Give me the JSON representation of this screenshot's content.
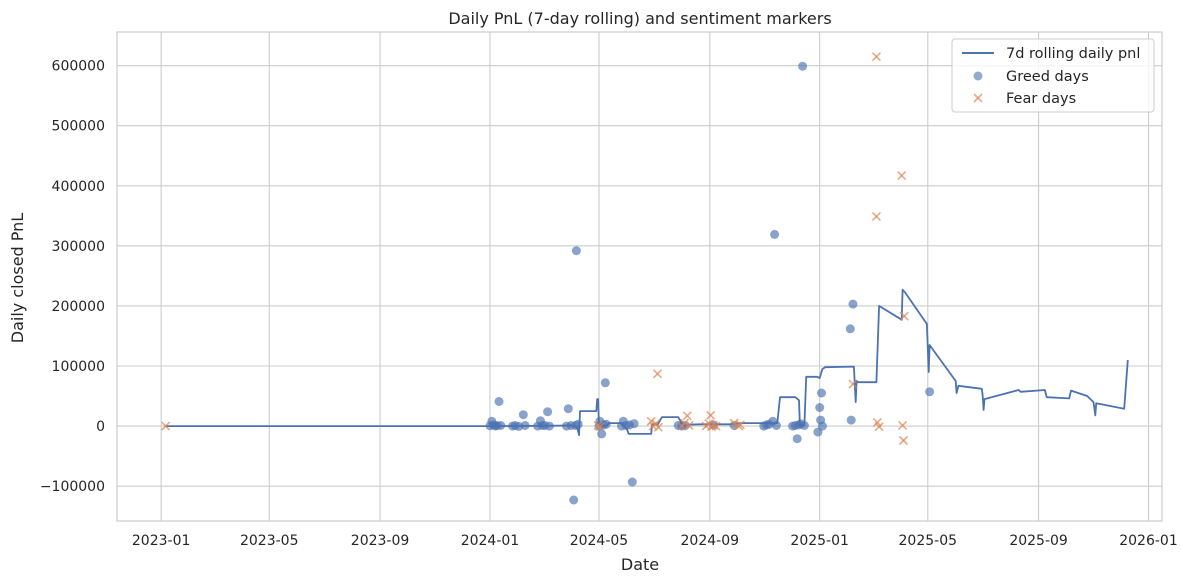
{
  "chart_data": {
    "type": "line",
    "title": "Daily PnL (7-day rolling) and sentiment markers",
    "xlabel": "Date",
    "ylabel": "Daily closed PnL",
    "x_axis": "date",
    "xlim": [
      "2022-11-13",
      "2026-01-16"
    ],
    "ylim": [
      -158000,
      656000
    ],
    "x_ticks": [
      "2023-01",
      "2023-05",
      "2023-09",
      "2024-01",
      "2024-05",
      "2024-09",
      "2025-01",
      "2025-05",
      "2025-09",
      "2026-01"
    ],
    "x_tick_dates": [
      "2023-01-01",
      "2023-05-01",
      "2023-09-01",
      "2024-01-01",
      "2024-05-01",
      "2024-09-01",
      "2025-01-01",
      "2025-05-01",
      "2025-09-01",
      "2026-01-01"
    ],
    "y_ticks": [
      -100000,
      0,
      100000,
      200000,
      300000,
      400000,
      500000,
      600000
    ],
    "y_tick_labels": [
      "−100000",
      "0",
      "100000",
      "200000",
      "300000",
      "400000",
      "500000",
      "600000"
    ],
    "grid": true,
    "legend_position": "top-right",
    "colors": {
      "line": "#4c72b0",
      "greed": "#4c72b0",
      "fear": "#dd8452",
      "grid": "#cccccc",
      "frame": "#cccccc"
    },
    "series": [
      {
        "name": "7d rolling daily pnl",
        "kind": "line",
        "points": [
          [
            "2023-01-06",
            0
          ],
          [
            "2024-01-01",
            0
          ],
          [
            "2024-02-01",
            200
          ],
          [
            "2024-03-01",
            500
          ],
          [
            "2024-04-01",
            1000
          ],
          [
            "2024-04-07",
            -3000
          ],
          [
            "2024-04-09",
            -15000
          ],
          [
            "2024-04-10",
            25000
          ],
          [
            "2024-04-28",
            25000
          ],
          [
            "2024-04-29",
            45000
          ],
          [
            "2024-04-30",
            45000
          ],
          [
            "2024-05-01",
            1000
          ],
          [
            "2024-05-10",
            1000
          ],
          [
            "2024-05-12",
            5000
          ],
          [
            "2024-05-25",
            5000
          ],
          [
            "2024-06-01",
            -5000
          ],
          [
            "2024-06-03",
            -13000
          ],
          [
            "2024-06-25",
            -13000
          ],
          [
            "2024-06-28",
            -13000
          ],
          [
            "2024-06-29",
            3000
          ],
          [
            "2024-07-01",
            3000
          ],
          [
            "2024-07-05",
            2000
          ],
          [
            "2024-07-10",
            15000
          ],
          [
            "2024-07-28",
            15000
          ],
          [
            "2024-08-02",
            2000
          ],
          [
            "2024-08-20",
            3000
          ],
          [
            "2024-09-10",
            3000
          ],
          [
            "2024-09-25",
            3000
          ],
          [
            "2024-10-05",
            5000
          ],
          [
            "2024-10-30",
            5000
          ],
          [
            "2024-11-15",
            5000
          ],
          [
            "2024-11-18",
            48000
          ],
          [
            "2024-12-05",
            48000
          ],
          [
            "2024-12-09",
            43000
          ],
          [
            "2024-12-10",
            1000
          ],
          [
            "2024-12-15",
            1000
          ],
          [
            "2024-12-17",
            82000
          ],
          [
            "2024-12-29",
            82000
          ],
          [
            "2025-01-01",
            80000
          ],
          [
            "2025-01-04",
            95000
          ],
          [
            "2025-01-07",
            98000
          ],
          [
            "2025-02-08",
            99000
          ],
          [
            "2025-02-10",
            40000
          ],
          [
            "2025-02-11",
            75000
          ],
          [
            "2025-02-13",
            73000
          ],
          [
            "2025-03-05",
            73000
          ],
          [
            "2025-03-08",
            200000
          ],
          [
            "2025-04-01",
            178000
          ],
          [
            "2025-04-02",
            177000
          ],
          [
            "2025-04-03",
            227000
          ],
          [
            "2025-04-06",
            222000
          ],
          [
            "2025-04-30",
            170000
          ],
          [
            "2025-05-02",
            90000
          ],
          [
            "2025-05-03",
            135000
          ],
          [
            "2025-06-01",
            75000
          ],
          [
            "2025-06-02",
            55000
          ],
          [
            "2025-06-04",
            67000
          ],
          [
            "2025-06-30",
            62000
          ],
          [
            "2025-07-01",
            50000
          ],
          [
            "2025-07-02",
            27000
          ],
          [
            "2025-07-03",
            45000
          ],
          [
            "2025-08-10",
            60000
          ],
          [
            "2025-08-12",
            57000
          ],
          [
            "2025-09-08",
            60000
          ],
          [
            "2025-09-10",
            48000
          ],
          [
            "2025-10-05",
            46000
          ],
          [
            "2025-10-07",
            59000
          ],
          [
            "2025-10-25",
            50000
          ],
          [
            "2025-11-01",
            40000
          ],
          [
            "2025-11-03",
            18000
          ],
          [
            "2025-11-04",
            38000
          ],
          [
            "2025-12-05",
            29000
          ],
          [
            "2025-12-09",
            110000
          ]
        ]
      },
      {
        "name": "Greed days",
        "kind": "scatter",
        "marker": "circle",
        "points": [
          [
            "2024-01-01",
            500
          ],
          [
            "2024-01-03",
            8000
          ],
          [
            "2024-01-05",
            2000
          ],
          [
            "2024-01-07",
            0
          ],
          [
            "2024-01-09",
            1000
          ],
          [
            "2024-01-11",
            41000
          ],
          [
            "2024-01-13",
            1000
          ],
          [
            "2024-01-26",
            0
          ],
          [
            "2024-01-29",
            1000
          ],
          [
            "2024-02-02",
            -500
          ],
          [
            "2024-02-07",
            19000
          ],
          [
            "2024-02-09",
            1000
          ],
          [
            "2024-02-23",
            0
          ],
          [
            "2024-02-26",
            9000
          ],
          [
            "2024-02-28",
            1000
          ],
          [
            "2024-03-02",
            1000
          ],
          [
            "2024-03-05",
            24000
          ],
          [
            "2024-03-07",
            0
          ],
          [
            "2024-03-26",
            0
          ],
          [
            "2024-03-28",
            29000
          ],
          [
            "2024-03-31",
            1000
          ],
          [
            "2024-04-03",
            -123000
          ],
          [
            "2024-04-05",
            1000
          ],
          [
            "2024-04-06",
            292000
          ],
          [
            "2024-04-08",
            3000
          ],
          [
            "2024-05-01",
            0
          ],
          [
            "2024-05-02",
            8000
          ],
          [
            "2024-05-04",
            -13000
          ],
          [
            "2024-05-06",
            2000
          ],
          [
            "2024-05-08",
            72000
          ],
          [
            "2024-05-09",
            3000
          ],
          [
            "2024-05-26",
            0
          ],
          [
            "2024-05-28",
            8000
          ],
          [
            "2024-05-31",
            1000
          ],
          [
            "2024-06-04",
            2000
          ],
          [
            "2024-06-07",
            -93000
          ],
          [
            "2024-06-09",
            4000
          ],
          [
            "2024-07-28",
            1000
          ],
          [
            "2024-08-01",
            0
          ],
          [
            "2024-08-05",
            1000
          ],
          [
            "2024-09-05",
            2000
          ],
          [
            "2024-09-28",
            1000
          ],
          [
            "2024-10-31",
            0
          ],
          [
            "2024-11-03",
            2000
          ],
          [
            "2024-11-06",
            3000
          ],
          [
            "2024-11-10",
            8000
          ],
          [
            "2024-11-12",
            319000
          ],
          [
            "2024-11-14",
            1000
          ],
          [
            "2024-12-02",
            0
          ],
          [
            "2024-12-05",
            1000
          ],
          [
            "2024-12-07",
            -21000
          ],
          [
            "2024-12-09",
            2000
          ],
          [
            "2024-12-11",
            4000
          ],
          [
            "2024-12-13",
            599000
          ],
          [
            "2024-12-15",
            1000
          ],
          [
            "2024-12-30",
            -10000
          ],
          [
            "2025-01-01",
            31000
          ],
          [
            "2025-01-02",
            10000
          ],
          [
            "2025-01-03",
            55000
          ],
          [
            "2025-01-04",
            0
          ],
          [
            "2025-02-04",
            162000
          ],
          [
            "2025-02-05",
            10000
          ],
          [
            "2025-02-07",
            203000
          ],
          [
            "2025-05-03",
            57000
          ]
        ]
      },
      {
        "name": "Fear days",
        "kind": "scatter",
        "marker": "x",
        "points": [
          [
            "2023-01-06",
            0
          ],
          [
            "2024-04-30",
            1000
          ],
          [
            "2024-05-02",
            -1000
          ],
          [
            "2024-06-28",
            8000
          ],
          [
            "2024-06-30",
            0
          ],
          [
            "2024-07-03",
            4000
          ],
          [
            "2024-07-05",
            87000
          ],
          [
            "2024-07-06",
            -2000
          ],
          [
            "2024-08-01",
            0
          ],
          [
            "2024-08-04",
            5000
          ],
          [
            "2024-08-07",
            17000
          ],
          [
            "2024-08-09",
            1000
          ],
          [
            "2024-08-28",
            0
          ],
          [
            "2024-08-31",
            4000
          ],
          [
            "2024-09-02",
            18000
          ],
          [
            "2024-09-03",
            -1000
          ],
          [
            "2024-09-05",
            1000
          ],
          [
            "2024-09-08",
            0
          ],
          [
            "2024-09-28",
            5000
          ],
          [
            "2024-10-03",
            0
          ],
          [
            "2024-10-05",
            2000
          ],
          [
            "2025-02-07",
            70000
          ],
          [
            "2025-03-05",
            615000
          ],
          [
            "2025-03-05",
            349000
          ],
          [
            "2025-03-06",
            6000
          ],
          [
            "2025-03-08",
            -1000
          ],
          [
            "2025-04-02",
            417000
          ],
          [
            "2025-04-03",
            1000
          ],
          [
            "2025-04-04",
            -24000
          ],
          [
            "2025-04-05",
            183000
          ]
        ]
      }
    ]
  }
}
